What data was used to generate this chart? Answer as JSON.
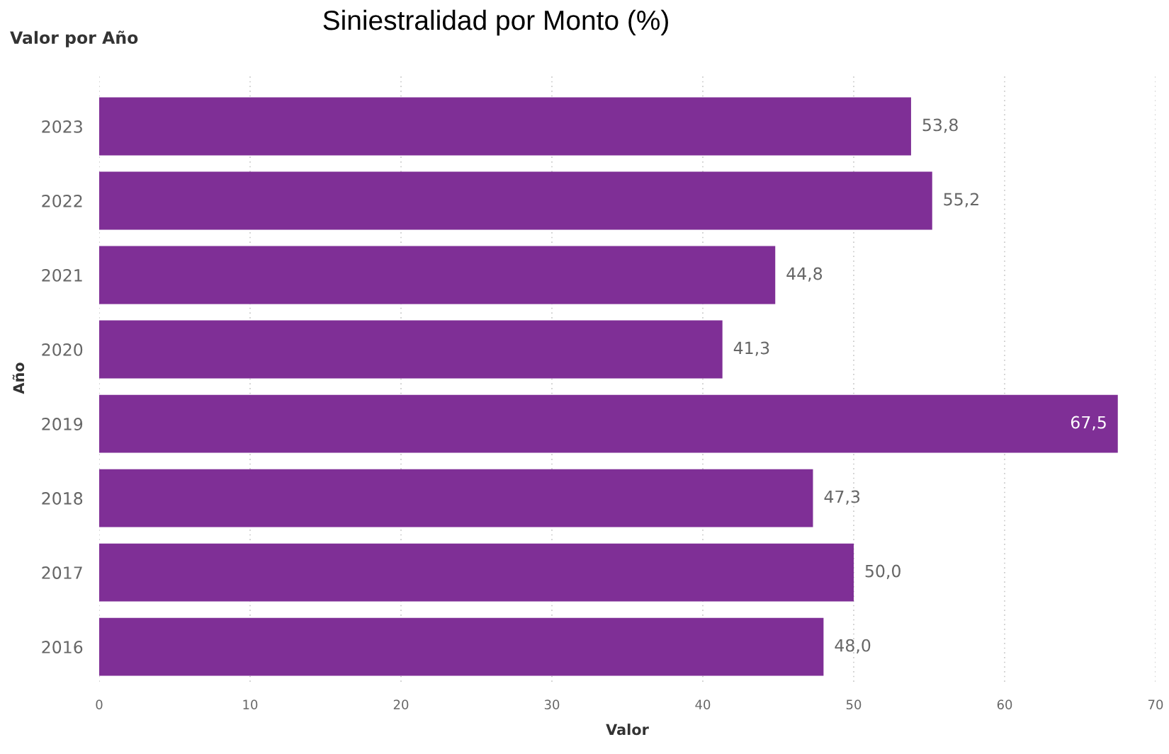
{
  "chart_data": {
    "type": "bar",
    "orientation": "horizontal",
    "title": "Siniestralidad por Monto (%)",
    "subtitle": "Valor por Año",
    "xlabel": "Valor",
    "ylabel": "Año",
    "categories": [
      "2023",
      "2022",
      "2021",
      "2020",
      "2019",
      "2018",
      "2017",
      "2016"
    ],
    "values": [
      53.8,
      55.2,
      44.8,
      41.3,
      67.5,
      47.3,
      50.0,
      48.0
    ],
    "value_labels": [
      "53,8",
      "55,2",
      "44,8",
      "41,3",
      "67,5",
      "47,3",
      "50,0",
      "48,0"
    ],
    "color": "#7f2f96",
    "xlim": [
      0,
      70
    ],
    "xticks": [
      0,
      10,
      20,
      30,
      40,
      50,
      60,
      70
    ],
    "grid": "x"
  }
}
